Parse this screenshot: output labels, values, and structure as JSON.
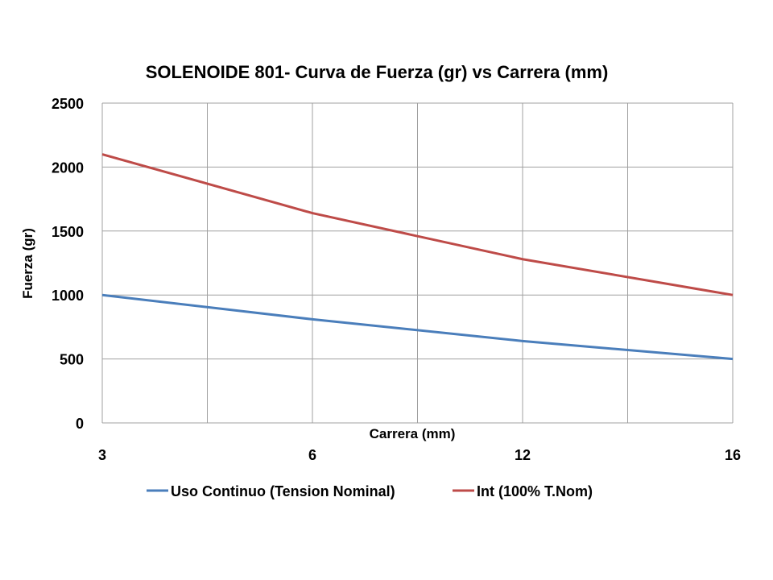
{
  "chart_data": {
    "type": "line",
    "title": "SOLENOIDE 801- Curva de Fuerza (gr) vs Carrera (mm)",
    "xlabel": "Carrera (mm)",
    "ylabel": "Fuerza (gr)",
    "categories": [
      "3",
      "6",
      "12",
      "16"
    ],
    "ylim": [
      0,
      2500
    ],
    "yticks": [
      0,
      500,
      1000,
      1500,
      2000,
      2500
    ],
    "grid": true,
    "legend": "bottom",
    "series": [
      {
        "name": "Uso Continuo (Tension Nominal)",
        "color": "#4a7ebb",
        "values": [
          1000,
          810,
          640,
          500
        ]
      },
      {
        "name": "Int (100% T.Nom)",
        "color": "#be4b48",
        "values": [
          2100,
          1640,
          1280,
          1000
        ]
      }
    ]
  }
}
